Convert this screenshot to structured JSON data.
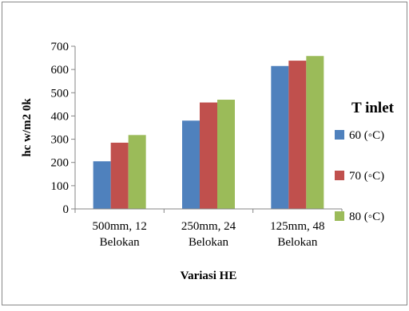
{
  "chart_data": {
    "type": "bar",
    "title": "",
    "xlabel": "Variasi HE",
    "ylabel": "hc w/m2 0k",
    "ylim": [
      0,
      700
    ],
    "yticks": [
      0,
      100,
      200,
      300,
      400,
      500,
      600,
      700
    ],
    "grid": false,
    "legend_position": "right",
    "legend_title": "T inlet",
    "categories": [
      [
        "500mm, 12",
        "Belokan"
      ],
      [
        "250mm, 24",
        "Belokan"
      ],
      [
        "125mm, 48",
        "Belokan"
      ]
    ],
    "series": [
      {
        "name": "60 (◦C)",
        "color": "#4F81BD",
        "values": [
          205,
          380,
          615
        ]
      },
      {
        "name": "70 (◦C)",
        "color": "#C0504D",
        "values": [
          285,
          458,
          638
        ]
      },
      {
        "name": "80 (◦C)",
        "color": "#9BBB59",
        "values": [
          318,
          470,
          658
        ]
      }
    ]
  }
}
